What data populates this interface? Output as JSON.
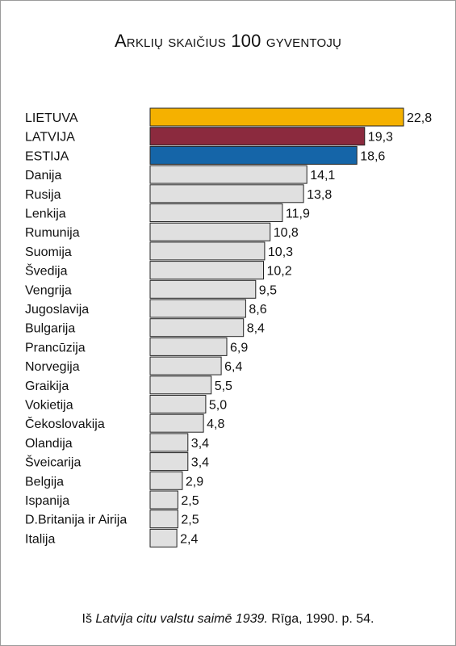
{
  "chart_data": {
    "type": "bar",
    "orientation": "horizontal",
    "title": "Arklių skaičius 100 gyventojų",
    "categories": [
      "LIETUVA",
      "LATVIJA",
      "ESTIJA",
      "Danija",
      "Rusija",
      "Lenkija",
      "Rumunija",
      "Suomija",
      "Švedija",
      "Vengrija",
      "Jugoslavija",
      "Bulgarija",
      "Prancūzija",
      "Norvegija",
      "Graikija",
      "Vokietija",
      "Čekoslovakija",
      "Olandija",
      "Šveicarija",
      "Belgija",
      "Ispanija",
      "D.Britanija ir Airija",
      "Italija"
    ],
    "values": [
      22.8,
      19.3,
      18.6,
      14.1,
      13.8,
      11.9,
      10.8,
      10.3,
      10.2,
      9.5,
      8.6,
      8.4,
      6.9,
      6.4,
      5.5,
      5.0,
      4.8,
      3.4,
      3.4,
      2.9,
      2.5,
      2.5,
      2.4
    ],
    "value_labels": [
      "22,8",
      "19,3",
      "18,6",
      "14,1",
      "13,8",
      "11,9",
      "10,8",
      "10,3",
      "10,2",
      "9,5",
      "8,6",
      "8,4",
      "6,9",
      "6,4",
      "5,5",
      "5,0",
      "4,8",
      "3,4",
      "3,4",
      "2,9",
      "2,5",
      "2,5",
      "2,4"
    ],
    "bar_colors": [
      "#f5b100",
      "#8b2a3e",
      "#1565a8",
      "#e0e0e0",
      "#e0e0e0",
      "#e0e0e0",
      "#e0e0e0",
      "#e0e0e0",
      "#e0e0e0",
      "#e0e0e0",
      "#e0e0e0",
      "#e0e0e0",
      "#e0e0e0",
      "#e0e0e0",
      "#e0e0e0",
      "#e0e0e0",
      "#e0e0e0",
      "#e0e0e0",
      "#e0e0e0",
      "#e0e0e0",
      "#e0e0e0",
      "#e0e0e0",
      "#e0e0e0"
    ],
    "grid": false,
    "legend": "none"
  },
  "source": {
    "prefix": "Iš ",
    "work": "Latvija citu valstu saimē 1939.",
    "suffix": " Rīga, 1990. p. 54."
  }
}
